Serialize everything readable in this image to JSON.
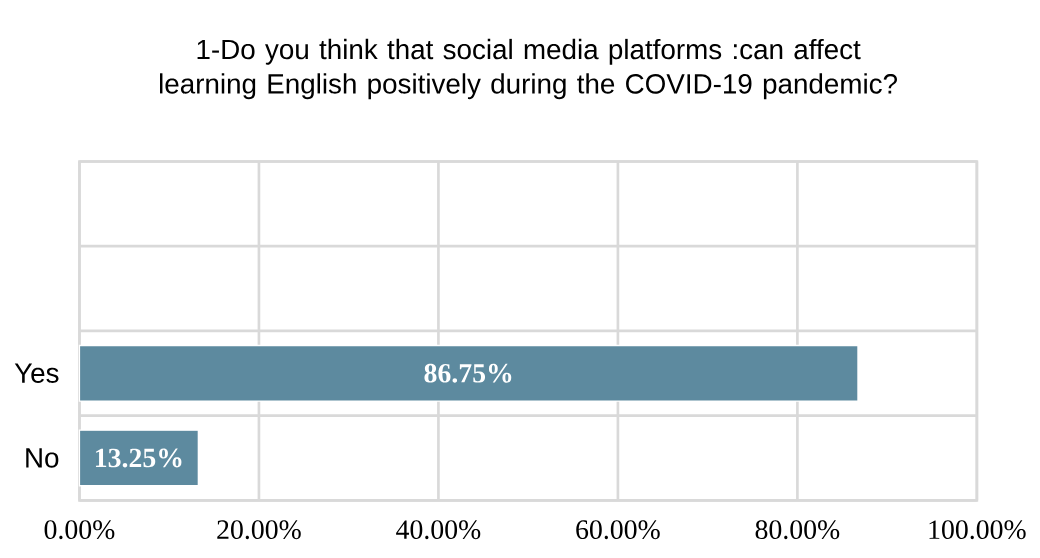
{
  "chart_data": {
    "type": "bar",
    "orientation": "horizontal",
    "title": "1-Do you think that social media platforms :can affect learning English positively during the COVID-19 pandemic?",
    "categories": [
      null,
      null,
      "Yes",
      "No"
    ],
    "values": [
      null,
      null,
      86.75,
      13.25
    ],
    "value_labels": [
      null,
      null,
      "86.75%",
      "13.25%"
    ],
    "color": "#5d8a9f",
    "xlim": [
      0,
      100
    ],
    "xticks": [
      {
        "value": 0,
        "label": "0.00%"
      },
      {
        "value": 20,
        "label": "20.00%"
      },
      {
        "value": 40,
        "label": "40.00%"
      },
      {
        "value": 60,
        "label": "60.00%"
      },
      {
        "value": 80,
        "label": "80.00%"
      },
      {
        "value": 100,
        "label": "100.00%"
      }
    ],
    "grid": true
  }
}
